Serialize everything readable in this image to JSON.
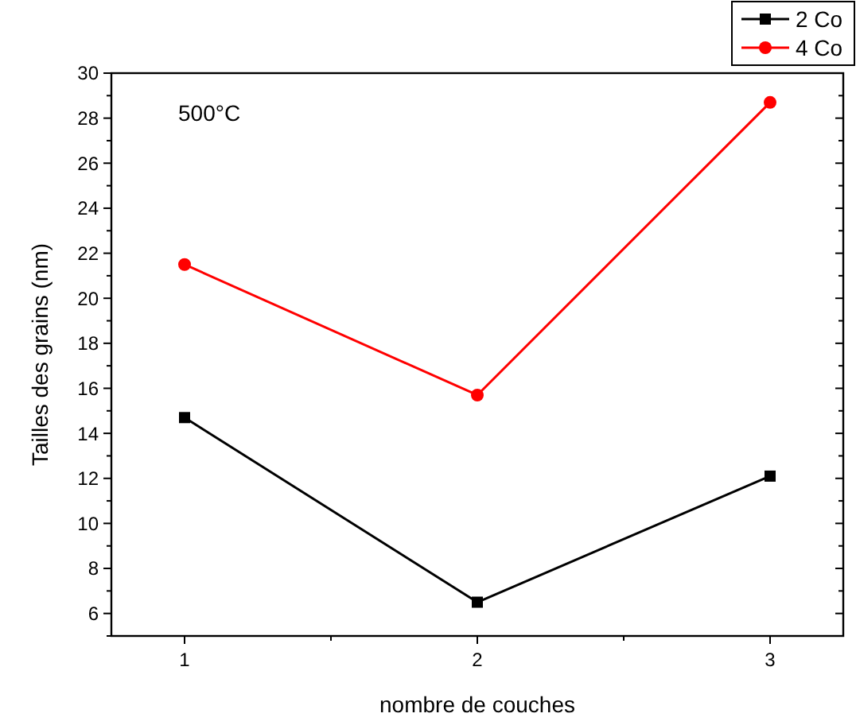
{
  "chart_data": {
    "type": "line",
    "xlabel": "nombre de couches",
    "ylabel": "Tailles des grains (nm)",
    "annotations": [
      "500°C"
    ],
    "x": [
      1,
      2,
      3
    ],
    "xlim": [
      0.75,
      3.25
    ],
    "xticks": [
      1,
      2,
      3
    ],
    "ylim": [
      5,
      30
    ],
    "yticks": [
      6,
      8,
      10,
      12,
      14,
      16,
      18,
      20,
      22,
      24,
      26,
      28,
      30
    ],
    "series": [
      {
        "name": "2 Co",
        "color": "#000000",
        "marker": "square",
        "values": [
          14.7,
          6.5,
          12.1
        ]
      },
      {
        "name": "4 Co",
        "color": "#ff0000",
        "marker": "circle",
        "values": [
          21.5,
          15.7,
          28.7
        ]
      }
    ],
    "legend": "top right",
    "grid": false,
    "line_style": "solid"
  }
}
